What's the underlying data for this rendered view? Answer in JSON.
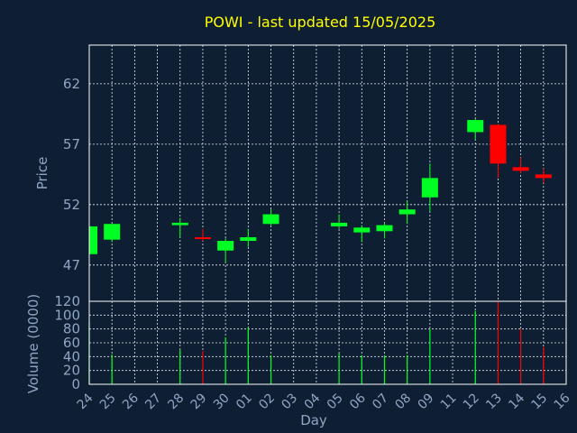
{
  "chart_data": {
    "type": "candlestick",
    "title": "POWI - last updated 15/05/2025",
    "price_axis": {
      "label": "Price",
      "ticks": [
        47,
        52,
        57,
        62
      ],
      "ylim": [
        44.0,
        65.2
      ]
    },
    "volume_axis": {
      "label": "Volume (0000)",
      "ticks": [
        0,
        20,
        40,
        60,
        80,
        100,
        120
      ],
      "ylim": [
        0,
        120
      ]
    },
    "xlabel": "Day",
    "days": [
      "24",
      "25",
      "26",
      "27",
      "28",
      "29",
      "30",
      "01",
      "02",
      "03",
      "04",
      "05",
      "06",
      "07",
      "08",
      "09",
      "11",
      "12",
      "13",
      "14",
      "15",
      "16"
    ],
    "colors": {
      "up": "#00ff22",
      "down": "#ff0000",
      "background": "#0f1f33"
    },
    "candles": [
      {
        "day": "24",
        "open": 47.9,
        "high": 50.3,
        "low": 47.8,
        "close": 50.2,
        "volume": 90
      },
      {
        "day": "25",
        "open": 49.1,
        "high": 50.4,
        "low": 48.9,
        "close": 50.4,
        "volume": 43
      },
      {
        "day": "28",
        "open": 50.3,
        "high": 50.9,
        "low": 49.3,
        "close": 50.5,
        "volume": 50
      },
      {
        "day": "29",
        "open": 49.3,
        "high": 50.0,
        "low": 49.0,
        "close": 49.2,
        "volume": 48
      },
      {
        "day": "30",
        "open": 48.2,
        "high": 49.2,
        "low": 47.2,
        "close": 49.0,
        "volume": 68
      },
      {
        "day": "01",
        "open": 49.0,
        "high": 50.0,
        "low": 48.5,
        "close": 49.3,
        "volume": 82
      },
      {
        "day": "02",
        "open": 50.4,
        "high": 51.6,
        "low": 50.3,
        "close": 51.2,
        "volume": 42
      },
      {
        "day": "05",
        "open": 50.2,
        "high": 51.2,
        "low": 50.0,
        "close": 50.5,
        "volume": 45
      },
      {
        "day": "06",
        "open": 49.7,
        "high": 50.3,
        "low": 48.9,
        "close": 50.1,
        "volume": 42
      },
      {
        "day": "07",
        "open": 49.8,
        "high": 50.5,
        "low": 49.2,
        "close": 50.3,
        "volume": 42
      },
      {
        "day": "08",
        "open": 51.2,
        "high": 52.3,
        "low": 50.4,
        "close": 51.6,
        "volume": 42
      },
      {
        "day": "09",
        "open": 52.6,
        "high": 55.4,
        "low": 51.4,
        "close": 54.2,
        "volume": 80
      },
      {
        "day": "12",
        "open": 58.0,
        "high": 59.1,
        "low": 57.4,
        "close": 59.0,
        "volume": 106
      },
      {
        "day": "13",
        "open": 58.6,
        "high": 58.7,
        "low": 54.2,
        "close": 55.4,
        "volume": 122
      },
      {
        "day": "14",
        "open": 55.1,
        "high": 55.9,
        "low": 54.6,
        "close": 54.8,
        "volume": 80
      },
      {
        "day": "15",
        "open": 54.5,
        "high": 55.0,
        "low": 53.8,
        "close": 54.2,
        "volume": 54
      }
    ]
  }
}
